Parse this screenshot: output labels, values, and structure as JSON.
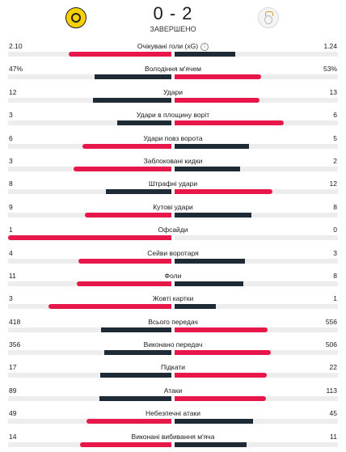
{
  "match": {
    "home_crest_icon": "borussia-dortmund-crest",
    "away_crest_icon": "real-madrid-crest",
    "score": "0 - 2",
    "status": "ЗАВЕРШЕНО"
  },
  "colors": {
    "lead": "#e8174a",
    "trail": "#1e2a36",
    "track": "#ededed"
  },
  "stats": [
    {
      "label": "Очікувані голи (xG)",
      "home": "2.10",
      "away": "1.24",
      "home_value": 2.1,
      "away_value": 1.24,
      "info": "i"
    },
    {
      "label": "Володіння м'ячем",
      "home": "47%",
      "away": "53%",
      "home_value": 47,
      "away_value": 53
    },
    {
      "label": "Удари",
      "home": "12",
      "away": "13",
      "home_value": 12,
      "away_value": 13
    },
    {
      "label": "Удари в площину воріт",
      "home": "3",
      "away": "6",
      "home_value": 3,
      "away_value": 6
    },
    {
      "label": "Удари повз ворота",
      "home": "6",
      "away": "5",
      "home_value": 6,
      "away_value": 5
    },
    {
      "label": "Заблоковані кидки",
      "home": "3",
      "away": "2",
      "home_value": 3,
      "away_value": 2
    },
    {
      "label": "Штрафні удари",
      "home": "8",
      "away": "12",
      "home_value": 8,
      "away_value": 12
    },
    {
      "label": "Кутові удари",
      "home": "9",
      "away": "8",
      "home_value": 9,
      "away_value": 8
    },
    {
      "label": "Офсайди",
      "home": "1",
      "away": "0",
      "home_value": 1,
      "away_value": 0
    },
    {
      "label": "Сейви воротаря",
      "home": "4",
      "away": "3",
      "home_value": 4,
      "away_value": 3
    },
    {
      "label": "Фоли",
      "home": "11",
      "away": "8",
      "home_value": 11,
      "away_value": 8
    },
    {
      "label": "Жовті картки",
      "home": "3",
      "away": "1",
      "home_value": 3,
      "away_value": 1
    },
    {
      "label": "Всього передач",
      "home": "418",
      "away": "556",
      "home_value": 418,
      "away_value": 556
    },
    {
      "label": "Виконано передач",
      "home": "356",
      "away": "506",
      "home_value": 356,
      "away_value": 506
    },
    {
      "label": "Підкати",
      "home": "17",
      "away": "22",
      "home_value": 17,
      "away_value": 22
    },
    {
      "label": "Атаки",
      "home": "89",
      "away": "113",
      "home_value": 89,
      "away_value": 113
    },
    {
      "label": "Небезпечні атаки",
      "home": "49",
      "away": "45",
      "home_value": 49,
      "away_value": 45
    },
    {
      "label": "Виконані вибивання м'яча",
      "home": "14",
      "away": "11",
      "home_value": 14,
      "away_value": 11
    }
  ]
}
